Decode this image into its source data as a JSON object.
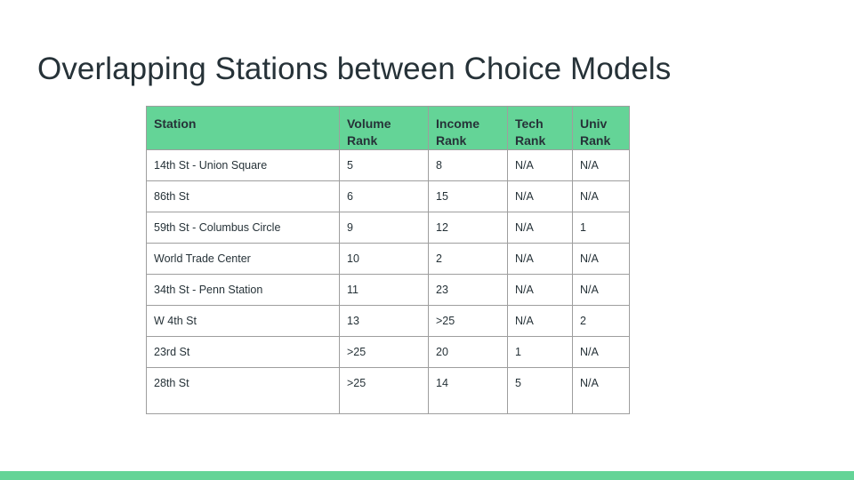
{
  "slide": {
    "title": "Overlapping Stations between Choice Models"
  },
  "table": {
    "headers": [
      {
        "line1": "Station",
        "line2": ""
      },
      {
        "line1": "Volume",
        "line2": "Rank"
      },
      {
        "line1": "Income",
        "line2": "Rank"
      },
      {
        "line1": "Tech",
        "line2": "Rank"
      },
      {
        "line1": "Univ",
        "line2": "Rank"
      }
    ],
    "rows": [
      [
        "14th St - Union Square",
        "5",
        "8",
        "N/A",
        "N/A"
      ],
      [
        "86th St",
        "6",
        "15",
        "N/A",
        "N/A"
      ],
      [
        "59th St - Columbus Circle",
        "9",
        "12",
        "N/A",
        "1"
      ],
      [
        "World Trade Center",
        "10",
        "2",
        "N/A",
        "N/A"
      ],
      [
        "34th St - Penn Station",
        "11",
        "23",
        "N/A",
        "N/A"
      ],
      [
        "W 4th St",
        "13",
        ">25",
        "N/A",
        "2"
      ],
      [
        "23rd St",
        ">25",
        "20",
        "1",
        "N/A"
      ],
      [
        "28th St",
        ">25",
        "14",
        "5",
        "N/A"
      ]
    ]
  },
  "colors": {
    "accent": "#64d497",
    "text": "#263238",
    "border": "#9e9e9e"
  }
}
